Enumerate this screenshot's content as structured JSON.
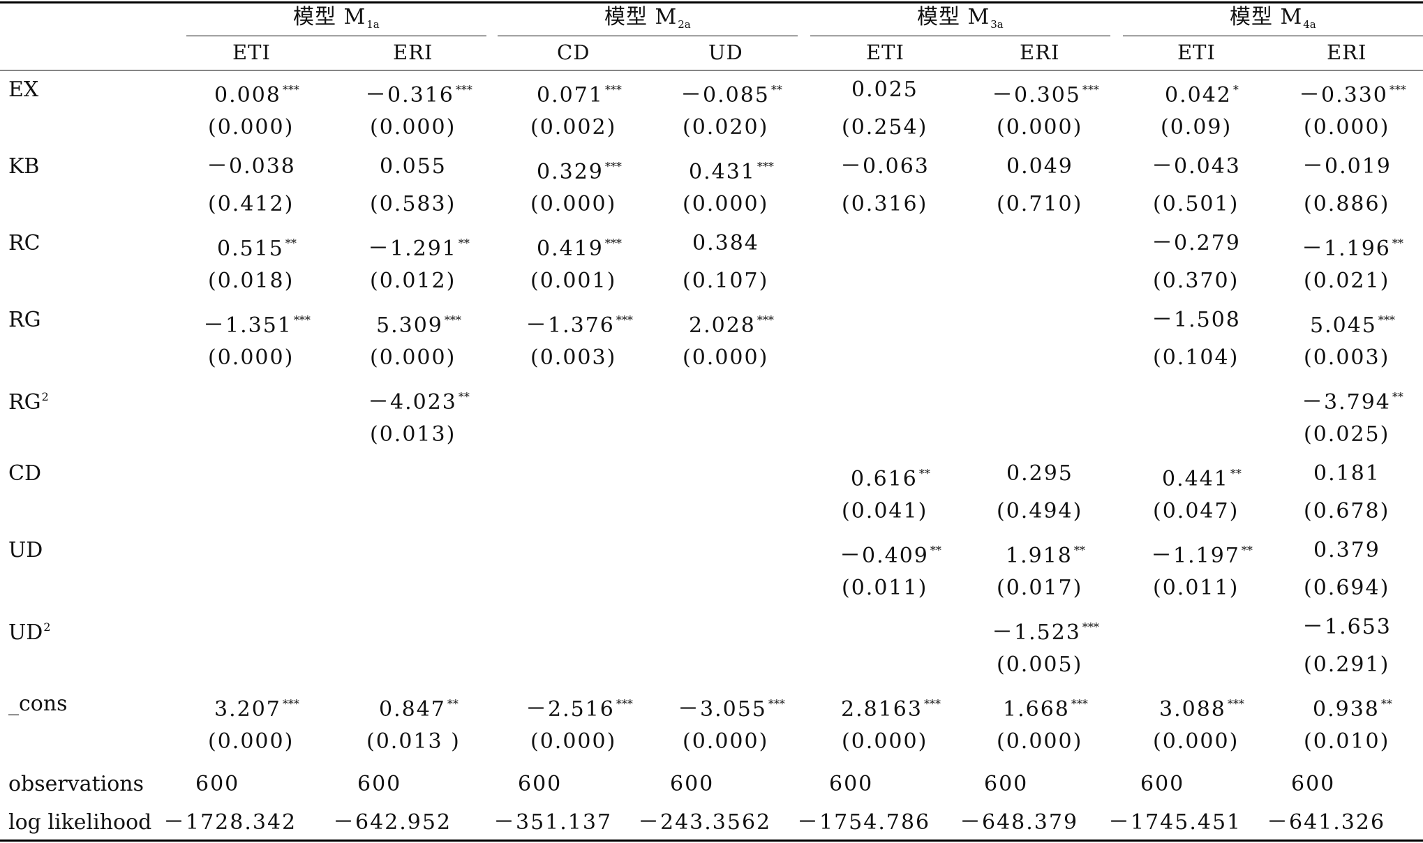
{
  "groups": [
    {
      "prefix": "模型 M",
      "sub": "1a"
    },
    {
      "prefix": "模型 M",
      "sub": "2a"
    },
    {
      "prefix": "模型 M",
      "sub": "3a"
    },
    {
      "prefix": "模型 M",
      "sub": "4a"
    }
  ],
  "col_headers": [
    "ETI",
    "ERI",
    "CD",
    "UD",
    "ETI",
    "ERI",
    "ETI",
    "ERI"
  ],
  "rows": [
    {
      "label": "EX",
      "sup": "",
      "coef": [
        [
          "0.008",
          "***"
        ],
        [
          "－0.316",
          "***"
        ],
        [
          "0.071",
          "***"
        ],
        [
          "－0.085",
          "**"
        ],
        [
          "0.025",
          ""
        ],
        [
          "－0.305",
          "***"
        ],
        [
          "0.042",
          "*"
        ],
        [
          "－0.330",
          "***"
        ]
      ],
      "pval": [
        "(0.000)",
        "(0.000)",
        "(0.002)",
        "(0.020)",
        "(0.254)",
        "(0.000)",
        "(0.09)",
        "(0.000)"
      ]
    },
    {
      "label": "KB",
      "sup": "",
      "coef": [
        [
          "－0.038",
          ""
        ],
        [
          "0.055",
          ""
        ],
        [
          "0.329",
          "***"
        ],
        [
          "0.431",
          "***"
        ],
        [
          "－0.063",
          ""
        ],
        [
          "0.049",
          ""
        ],
        [
          "－0.043",
          ""
        ],
        [
          "－0.019",
          ""
        ]
      ],
      "pval": [
        "(0.412)",
        "(0.583)",
        "(0.000)",
        "(0.000)",
        "(0.316)",
        "(0.710)",
        "(0.501)",
        "(0.886)"
      ]
    },
    {
      "label": "RC",
      "sup": "",
      "coef": [
        [
          "0.515",
          "**"
        ],
        [
          "－1.291",
          "**"
        ],
        [
          "0.419",
          "***"
        ],
        [
          "0.384",
          ""
        ],
        null,
        null,
        [
          "－0.279",
          ""
        ],
        [
          "－1.196",
          "**"
        ]
      ],
      "pval": [
        "(0.018)",
        "(0.012)",
        "(0.001)",
        "(0.107)",
        "",
        "",
        "(0.370)",
        "(0.021)"
      ]
    },
    {
      "label": "RG",
      "sup": "",
      "coef": [
        [
          "－1.351",
          "***"
        ],
        [
          "5.309",
          "***"
        ],
        [
          "－1.376",
          "***"
        ],
        [
          "2.028",
          "***"
        ],
        null,
        null,
        [
          "－1.508",
          ""
        ],
        [
          "5.045",
          "***"
        ]
      ],
      "pval": [
        "(0.000)",
        "(0.000)",
        "(0.003)",
        "(0.000)",
        "",
        "",
        "(0.104)",
        "(0.003)"
      ]
    },
    {
      "label": "RG",
      "sup": "2",
      "coef": [
        null,
        [
          "－4.023",
          "**"
        ],
        null,
        null,
        null,
        null,
        null,
        [
          "－3.794",
          "**"
        ]
      ],
      "pval": [
        "",
        "(0.013)",
        "",
        "",
        "",
        "",
        "",
        "(0.025)"
      ]
    },
    {
      "label": "CD",
      "sup": "",
      "coef": [
        null,
        null,
        null,
        null,
        [
          "0.616",
          "**"
        ],
        [
          "0.295",
          ""
        ],
        [
          "0.441",
          "**"
        ],
        [
          "0.181",
          ""
        ]
      ],
      "pval": [
        "",
        "",
        "",
        "",
        "(0.041)",
        "(0.494)",
        "(0.047)",
        "(0.678)"
      ]
    },
    {
      "label": "UD",
      "sup": "",
      "coef": [
        null,
        null,
        null,
        null,
        [
          "－0.409",
          "**"
        ],
        [
          "1.918",
          "**"
        ],
        [
          "－1.197",
          "**"
        ],
        [
          "0.379",
          ""
        ]
      ],
      "pval": [
        "",
        "",
        "",
        "",
        "(0.011)",
        "(0.017)",
        "(0.011)",
        "(0.694)"
      ]
    },
    {
      "label": "UD",
      "sup": "2",
      "coef": [
        null,
        null,
        null,
        null,
        null,
        [
          "－1.523",
          "***"
        ],
        null,
        [
          "－1.653",
          ""
        ]
      ],
      "pval": [
        "",
        "",
        "",
        "",
        "",
        "(0.005)",
        "",
        "(0.291)"
      ]
    },
    {
      "label": "_cons",
      "sup": "",
      "coef": [
        [
          "3.207",
          "***"
        ],
        [
          "0.847",
          "**"
        ],
        [
          "－2.516",
          "***"
        ],
        [
          "－3.055",
          "***"
        ],
        [
          "2.8163",
          "***"
        ],
        [
          "1.668",
          "***"
        ],
        [
          "3.088",
          "***"
        ],
        [
          "0.938",
          "**"
        ]
      ],
      "pval": [
        "(0.000)",
        "(0.013 )",
        "(0.000)",
        "(0.000)",
        "(0.000)",
        "(0.000)",
        "(0.000)",
        "(0.010)"
      ]
    }
  ],
  "observations": {
    "label": "observations",
    "values": [
      "600",
      "600",
      "600",
      "600",
      "600",
      "600",
      "600",
      "600"
    ]
  },
  "log_likelihood": {
    "label": "log likelihood",
    "values": [
      "－1728.342",
      "－642.952",
      "－351.137",
      "－243.3562",
      "－1754.786",
      "－648.379",
      "－1745.451",
      "－641.326"
    ]
  }
}
